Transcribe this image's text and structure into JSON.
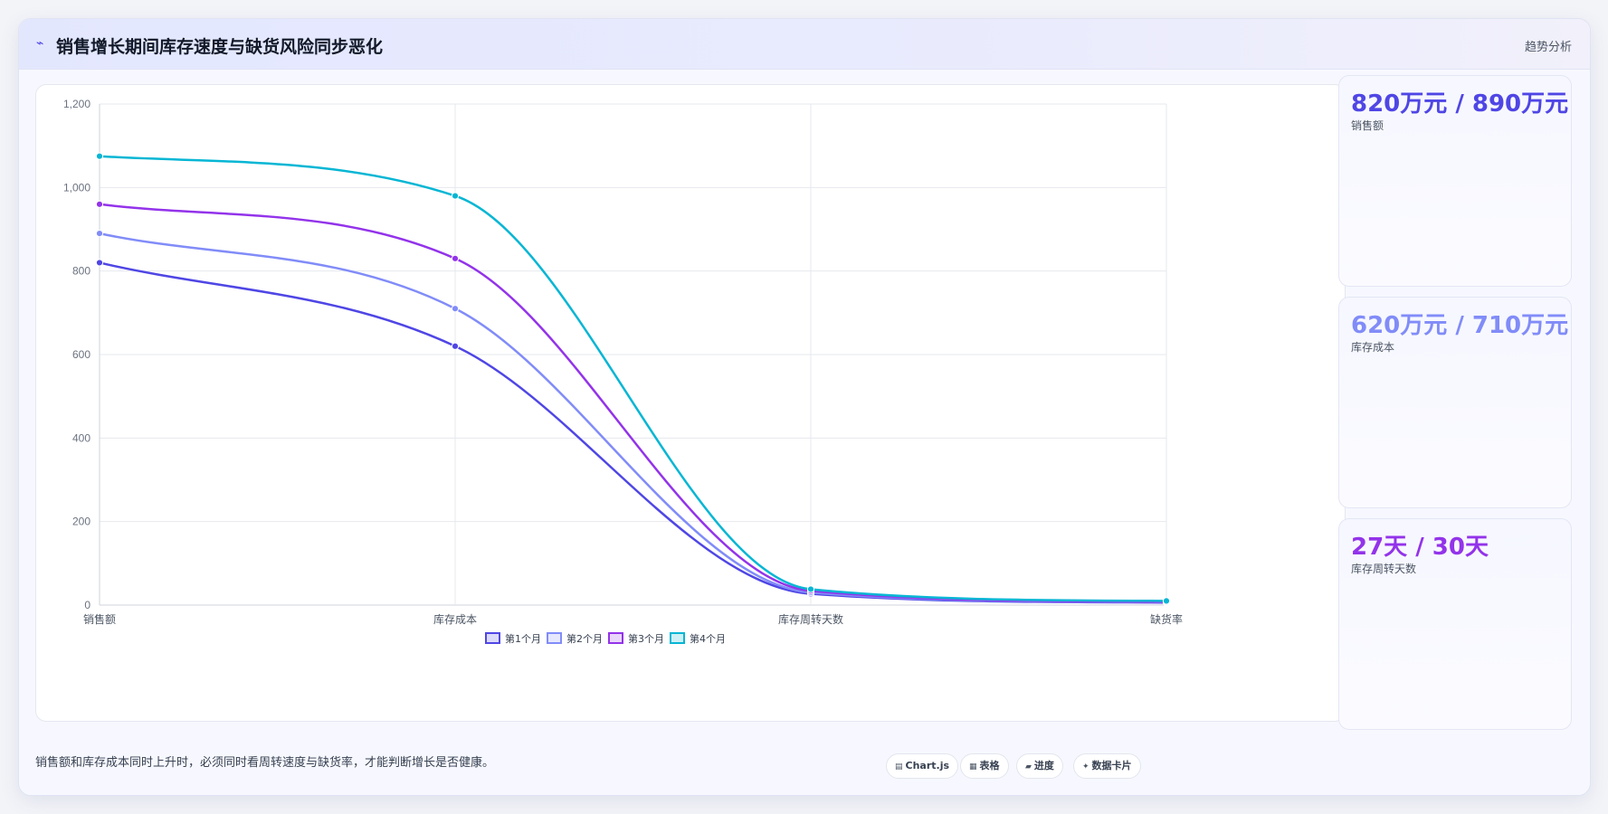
{
  "header": {
    "icon": "trend-icon",
    "title": "销售增长期间库存速度与缺货风险同步恶化",
    "tag": "趋势分析"
  },
  "chart_data": {
    "type": "line",
    "categories": [
      "销售额",
      "库存成本",
      "库存周转天数",
      "缺货率"
    ],
    "series": [
      {
        "name": "第1个月",
        "values": [
          820,
          620,
          27,
          6
        ],
        "color": "#4f46e5"
      },
      {
        "name": "第2个月",
        "values": [
          890,
          710,
          30,
          7
        ],
        "color": "#818cf8"
      },
      {
        "name": "第3个月",
        "values": [
          960,
          830,
          34,
          8
        ],
        "color": "#9333ea"
      },
      {
        "name": "第4个月",
        "values": [
          1075,
          980,
          38,
          10
        ],
        "color": "#06b6d4"
      }
    ],
    "yticks": [
      "0",
      "200",
      "400",
      "600",
      "800",
      "1,000",
      "1,200"
    ],
    "ylim": [
      0,
      1200
    ],
    "grid": true,
    "legend_position": "bottom"
  },
  "kpis": [
    {
      "value": "820万元 / 890万元",
      "label": "销售额",
      "color": "#4f46e5"
    },
    {
      "value": "620万元 / 710万元",
      "label": "库存成本",
      "color": "#818cf8"
    },
    {
      "value": "27天 / 30天",
      "label": "库存周转天数",
      "color": "#9333ea"
    }
  ],
  "footer": {
    "note": "销售额和库存成本同时上升时，必须同时看周转速度与缺货率，才能判断增长是否健康。",
    "chips": [
      {
        "icon": "chart-icon",
        "glyph": "▤",
        "label": "Chart.js"
      },
      {
        "icon": "table-icon",
        "glyph": "▦",
        "label": "表格"
      },
      {
        "icon": "progress-icon",
        "glyph": "▰",
        "label": "进度"
      },
      {
        "icon": "card-icon",
        "glyph": "✦",
        "label": "数据卡片"
      }
    ]
  }
}
